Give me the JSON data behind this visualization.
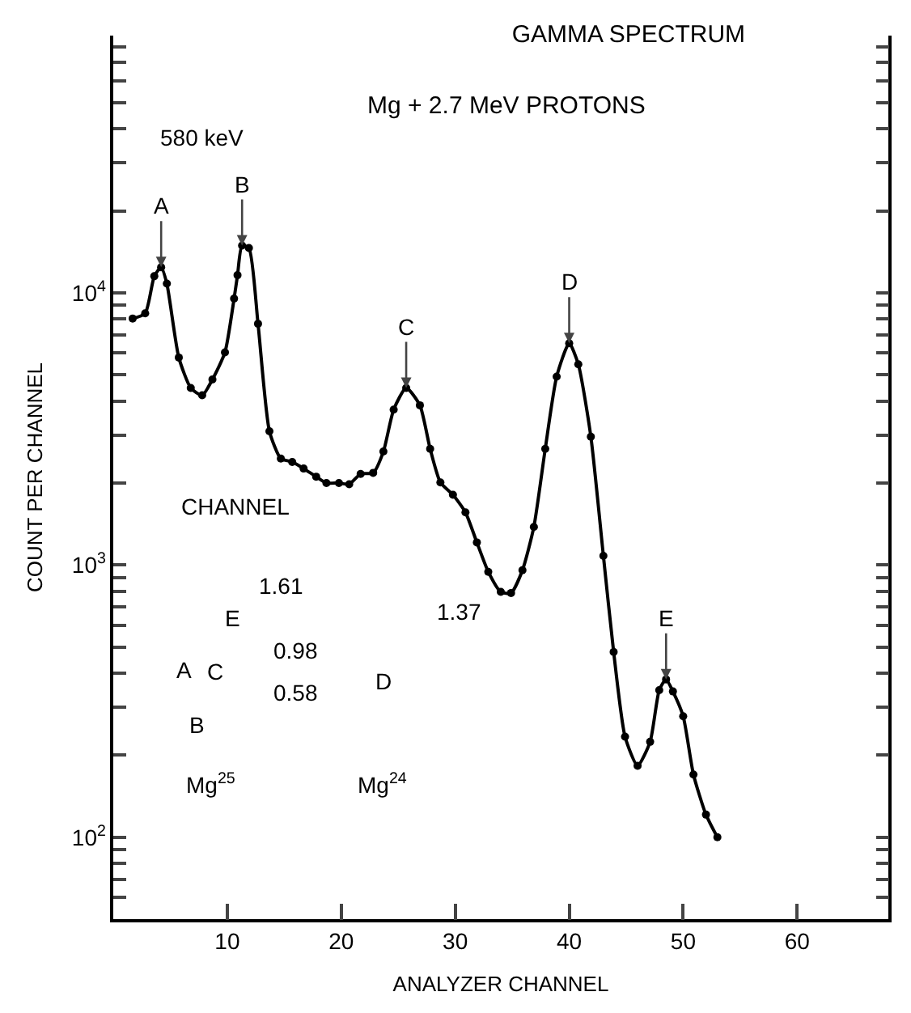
{
  "chart_data": {
    "type": "line",
    "title": "GAMMA SPECTRUM",
    "subtitle": "Mg + 2.7 MeV PROTONS",
    "xlabel": "ANALYZER CHANNEL",
    "ylabel": "COUNT PER CHANNEL",
    "x": [
      1.7,
      2.8,
      3.6,
      4.2,
      4.7,
      5.75,
      6.8,
      7.8,
      8.7,
      9.8,
      10.6,
      10.9,
      11.3,
      11.9,
      12.7,
      13.7,
      14.7,
      15.7,
      16.7,
      17.8,
      18.7,
      19.8,
      20.7,
      21.7,
      22.8,
      23.7,
      24.6,
      25.7,
      26.9,
      27.8,
      28.7,
      29.8,
      30.9,
      31.9,
      32.9,
      34.0,
      34.9,
      35.9,
      36.9,
      37.9,
      38.9,
      40.0,
      40.8,
      41.9,
      43.0,
      43.9,
      44.9,
      46.0,
      47.1,
      47.9,
      48.5,
      49.1,
      50.0,
      50.9,
      52.0,
      53.0
    ],
    "series": [
      {
        "color": "#000000",
        "values": [
          8040,
          8400,
          11500,
          12400,
          10800,
          5780,
          4470,
          4200,
          4800,
          6040,
          9520,
          11600,
          14900,
          14600,
          7690,
          3100,
          2460,
          2390,
          2260,
          2110,
          2000,
          2000,
          1980,
          2160,
          2180,
          2610,
          3720,
          4470,
          3860,
          2670,
          2010,
          1810,
          1560,
          1210,
          944,
          796,
          789,
          957,
          1380,
          2670,
          4920,
          6520,
          5460,
          2960,
          1080,
          479,
          234,
          183,
          224,
          347,
          380,
          343,
          278,
          170,
          121,
          100
        ]
      }
    ],
    "marker": "circle",
    "line_style": "solid",
    "log": "y",
    "grid": false,
    "xlim": [
      0,
      68
    ],
    "xticks": [
      10,
      20,
      30,
      40,
      50,
      60
    ],
    "ylim": [
      50,
      88000
    ],
    "yticks": [
      {
        "value": 60,
        "label": null
      },
      {
        "value": 70,
        "label": null
      },
      {
        "value": 80,
        "label": null
      },
      {
        "value": 90,
        "label": null
      },
      {
        "value": 100,
        "label": "10$^{2}$"
      },
      {
        "value": 200,
        "label": null
      },
      {
        "value": 300,
        "label": null
      },
      {
        "value": 400,
        "label": null
      },
      {
        "value": 500,
        "label": null
      },
      {
        "value": 600,
        "label": null
      },
      {
        "value": 700,
        "label": null
      },
      {
        "value": 800,
        "label": null
      },
      {
        "value": 900,
        "label": null
      },
      {
        "value": 1000,
        "label": "10$^{3}$"
      },
      {
        "value": 2000,
        "label": null
      },
      {
        "value": 3000,
        "label": null
      },
      {
        "value": 4000,
        "label": null
      },
      {
        "value": 5000,
        "label": null
      },
      {
        "value": 6000,
        "label": null
      },
      {
        "value": 7000,
        "label": null
      },
      {
        "value": 8000,
        "label": null
      },
      {
        "value": 9000,
        "label": null
      },
      {
        "value": 10000,
        "label": "10$^{4}$"
      },
      {
        "value": 20000,
        "label": null
      },
      {
        "value": 30000,
        "label": null
      },
      {
        "value": 40000,
        "label": null
      },
      {
        "value": 50000,
        "label": null
      },
      {
        "value": 60000,
        "label": null
      },
      {
        "value": 70000,
        "label": null
      },
      {
        "value": 80000,
        "label": null
      }
    ],
    "annotations": [
      {
        "text": "A",
        "x": 4.2,
        "y": 12400
      },
      {
        "text": "B",
        "x": 11.3,
        "y": 14900
      },
      {
        "text": "C",
        "x": 25.7,
        "y": 4470
      },
      {
        "text": "D",
        "x": 40.0,
        "y": 6520
      },
      {
        "text": "E",
        "x": 48.5,
        "y": 380
      },
      "580 keV",
      "CHANNEL",
      "1.61",
      "0.98",
      "0.58",
      "A",
      "C",
      "B",
      "E",
      "Mg$^{25}$",
      "D",
      "1.37",
      "Mg$^{24}$"
    ]
  }
}
